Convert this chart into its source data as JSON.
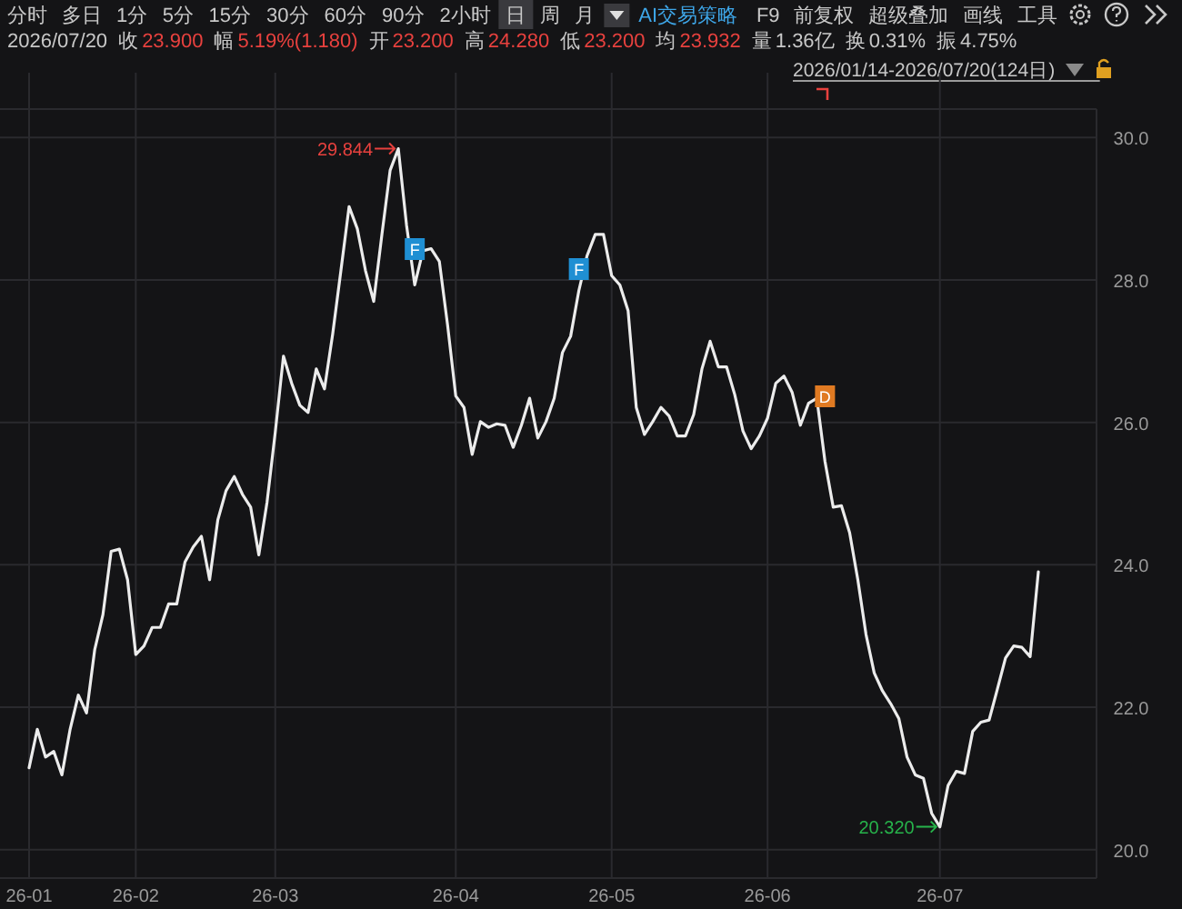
{
  "chart_data": {
    "type": "line",
    "title": "2026/01/14-2026/07/20(124日)",
    "subtitle": "2026/07/20 收 23.900 幅 5.19%(1.180) 开 23.200 高 24.280 低 23.200 均 23.932 量 1.36亿 换 0.31% 振 4.75%",
    "categories": [
      "26-01",
      null,
      null,
      null,
      null,
      null,
      null,
      null,
      null,
      null,
      null,
      null,
      null,
      "26-02",
      null,
      null,
      null,
      null,
      null,
      null,
      null,
      null,
      null,
      null,
      null,
      null,
      null,
      null,
      null,
      null,
      "26-03",
      null,
      null,
      null,
      null,
      null,
      null,
      null,
      null,
      null,
      null,
      null,
      null,
      null,
      null,
      null,
      null,
      null,
      null,
      null,
      null,
      null,
      "26-04",
      null,
      null,
      null,
      null,
      null,
      null,
      null,
      null,
      null,
      null,
      null,
      null,
      null,
      null,
      null,
      null,
      null,
      null,
      "26-05",
      null,
      null,
      null,
      null,
      null,
      null,
      null,
      null,
      null,
      null,
      null,
      null,
      null,
      null,
      null,
      null,
      null,
      null,
      "26-06",
      null,
      null,
      null,
      null,
      null,
      null,
      null,
      null,
      null,
      null,
      null,
      null,
      null,
      null,
      null,
      null,
      null,
      null,
      null,
      null,
      "26-07",
      null,
      null,
      null,
      null,
      null,
      null,
      null,
      null,
      null,
      null,
      null,
      null
    ],
    "series": [
      {
        "color": "#ececec",
        "values": [
          21.15,
          21.69,
          21.3,
          21.38,
          21.05,
          21.69,
          22.17,
          21.92,
          22.81,
          23.3,
          24.19,
          24.22,
          23.79,
          22.74,
          22.86,
          23.12,
          23.12,
          23.45,
          23.45,
          24.04,
          24.25,
          24.4,
          23.79,
          24.63,
          25.04,
          25.24,
          24.99,
          24.81,
          24.14,
          24.88,
          25.86,
          26.93,
          26.55,
          26.24,
          26.14,
          26.75,
          26.47,
          27.24,
          28.13,
          29.03,
          28.72,
          28.13,
          27.7,
          28.64,
          29.54,
          29.844,
          28.77,
          27.93,
          28.41,
          28.44,
          28.26,
          27.37,
          26.37,
          26.21,
          25.55,
          26.01,
          25.93,
          25.98,
          25.96,
          25.65,
          25.96,
          26.34,
          25.78,
          26.01,
          26.34,
          26.98,
          27.21,
          27.85,
          28.34,
          28.64,
          28.64,
          28.06,
          27.93,
          27.57,
          26.21,
          25.83,
          26.01,
          26.21,
          26.09,
          25.81,
          25.81,
          26.11,
          26.75,
          27.14,
          26.78,
          26.78,
          26.39,
          25.88,
          25.63,
          25.81,
          26.06,
          26.55,
          26.65,
          26.42,
          25.96,
          26.27,
          26.34,
          25.45,
          24.81,
          24.83,
          24.45,
          23.79,
          23.02,
          22.48,
          22.23,
          22.05,
          21.84,
          21.3,
          21.05,
          21.0,
          20.51,
          20.32,
          20.9,
          21.1,
          21.07,
          21.66,
          21.79,
          21.82,
          22.25,
          22.69,
          22.86,
          22.84,
          22.71,
          23.9
        ]
      }
    ],
    "ylim": [
      19.6,
      30.4
    ],
    "yticks": [
      {
        "value": 20,
        "label": "20.0"
      },
      {
        "value": 22,
        "label": "22.0"
      },
      {
        "value": 24,
        "label": "24.0"
      },
      {
        "value": 26,
        "label": "26.0"
      },
      {
        "value": 28,
        "label": "28.0"
      },
      {
        "value": 30,
        "label": "30.0"
      }
    ],
    "grid": true,
    "annotations": [
      "分时",
      "多日",
      "1分",
      "5分",
      "15分",
      "30分",
      "60分",
      "90分",
      "2小时",
      "日",
      "周",
      "月",
      "AI交易策略",
      "F9",
      "前复权",
      "超级叠加",
      "画线",
      "工具",
      "F",
      "F",
      "D",
      "29.844",
      "20.320"
    ]
  }
}
